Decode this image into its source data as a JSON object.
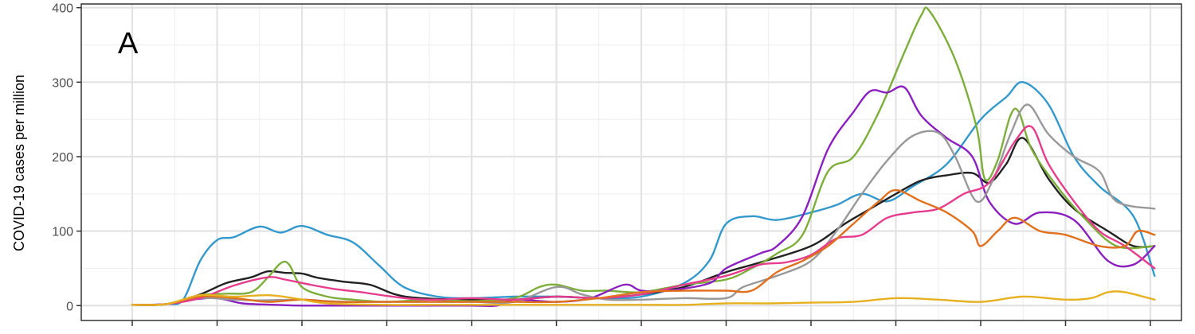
{
  "chart_data": {
    "type": "line",
    "panel_label": "A",
    "ylabel": "COVID-19 cases per million",
    "xlabel": "",
    "ylim": [
      -20,
      405
    ],
    "xlim": [
      -0.5,
      12.05
    ],
    "yticks": [
      0,
      100,
      200,
      300,
      400
    ],
    "ytick_labels": [
      "0",
      "100",
      "200",
      "300",
      "400"
    ],
    "xticks": [
      0,
      1,
      2,
      3,
      4,
      5,
      6,
      7,
      8,
      9,
      10,
      11,
      12
    ],
    "grid": true,
    "legend": "none",
    "series": [
      {
        "color": "#3399CC",
        "points": [
          [
            0,
            1
          ],
          [
            0.4,
            2
          ],
          [
            0.6,
            8
          ],
          [
            0.8,
            60
          ],
          [
            1,
            88
          ],
          [
            1.2,
            92
          ],
          [
            1.5,
            106
          ],
          [
            1.75,
            98
          ],
          [
            2,
            107
          ],
          [
            2.3,
            95
          ],
          [
            2.6,
            85
          ],
          [
            2.9,
            55
          ],
          [
            3.2,
            25
          ],
          [
            3.6,
            12
          ],
          [
            4,
            10
          ],
          [
            4.5,
            12
          ],
          [
            5,
            12
          ],
          [
            5.5,
            10
          ],
          [
            6,
            12
          ],
          [
            6.5,
            30
          ],
          [
            6.8,
            60
          ],
          [
            7,
            110
          ],
          [
            7.3,
            120
          ],
          [
            7.6,
            115
          ],
          [
            8,
            125
          ],
          [
            8.3,
            135
          ],
          [
            8.6,
            150
          ],
          [
            8.9,
            140
          ],
          [
            9.2,
            160
          ],
          [
            9.6,
            190
          ],
          [
            10,
            250
          ],
          [
            10.3,
            280
          ],
          [
            10.5,
            300
          ],
          [
            10.8,
            270
          ],
          [
            11.1,
            200
          ],
          [
            11.4,
            160
          ],
          [
            11.8,
            120
          ],
          [
            12.05,
            40
          ]
        ]
      },
      {
        "color": "#222222",
        "points": [
          [
            0,
            1
          ],
          [
            0.4,
            2
          ],
          [
            0.8,
            15
          ],
          [
            1.1,
            30
          ],
          [
            1.4,
            38
          ],
          [
            1.6,
            46
          ],
          [
            1.8,
            44
          ],
          [
            2,
            43
          ],
          [
            2.2,
            37
          ],
          [
            2.5,
            32
          ],
          [
            2.8,
            28
          ],
          [
            3.1,
            15
          ],
          [
            3.4,
            10
          ],
          [
            4,
            8
          ],
          [
            4.5,
            8
          ],
          [
            5,
            12
          ],
          [
            5.5,
            10
          ],
          [
            6,
            15
          ],
          [
            6.5,
            25
          ],
          [
            7,
            45
          ],
          [
            7.4,
            58
          ],
          [
            8,
            80
          ],
          [
            8.4,
            110
          ],
          [
            8.7,
            130
          ],
          [
            9,
            150
          ],
          [
            9.3,
            168
          ],
          [
            9.6,
            175
          ],
          [
            9.9,
            178
          ],
          [
            10.1,
            165
          ],
          [
            10.3,
            190
          ],
          [
            10.5,
            225
          ],
          [
            10.8,
            170
          ],
          [
            11.1,
            130
          ],
          [
            11.5,
            100
          ],
          [
            11.8,
            80
          ],
          [
            12.05,
            80
          ]
        ]
      },
      {
        "color": "#7CAE3A",
        "points": [
          [
            0,
            1
          ],
          [
            0.4,
            2
          ],
          [
            0.8,
            14
          ],
          [
            1.1,
            16
          ],
          [
            1.4,
            18
          ],
          [
            1.6,
            38
          ],
          [
            1.75,
            57
          ],
          [
            1.85,
            55
          ],
          [
            2,
            25
          ],
          [
            2.3,
            12
          ],
          [
            2.6,
            8
          ],
          [
            3,
            5
          ],
          [
            3.5,
            8
          ],
          [
            4,
            6
          ],
          [
            4.5,
            10
          ],
          [
            4.8,
            25
          ],
          [
            5,
            28
          ],
          [
            5.3,
            20
          ],
          [
            5.6,
            20
          ],
          [
            6,
            18
          ],
          [
            6.5,
            28
          ],
          [
            7,
            35
          ],
          [
            7.3,
            50
          ],
          [
            7.6,
            70
          ],
          [
            7.9,
            95
          ],
          [
            8.2,
            180
          ],
          [
            8.5,
            200
          ],
          [
            8.8,
            260
          ],
          [
            9.1,
            340
          ],
          [
            9.3,
            390
          ],
          [
            9.4,
            395
          ],
          [
            9.7,
            330
          ],
          [
            9.95,
            240
          ],
          [
            10.05,
            170
          ],
          [
            10.2,
            195
          ],
          [
            10.35,
            255
          ],
          [
            10.45,
            260
          ],
          [
            10.6,
            210
          ],
          [
            10.9,
            160
          ],
          [
            11.2,
            120
          ],
          [
            11.6,
            80
          ],
          [
            12.05,
            80
          ]
        ]
      },
      {
        "color": "#8B1FBF",
        "points": [
          [
            0,
            1
          ],
          [
            0.4,
            2
          ],
          [
            0.7,
            8
          ],
          [
            1,
            10
          ],
          [
            1.3,
            3
          ],
          [
            1.7,
            1
          ],
          [
            2,
            0
          ],
          [
            2.5,
            0
          ],
          [
            3,
            0
          ],
          [
            3.5,
            0
          ],
          [
            4,
            0
          ],
          [
            4.3,
            0
          ],
          [
            4.5,
            8
          ],
          [
            5,
            5
          ],
          [
            5.4,
            10
          ],
          [
            5.8,
            28
          ],
          [
            6,
            20
          ],
          [
            6.3,
            20
          ],
          [
            6.8,
            30
          ],
          [
            7,
            50
          ],
          [
            7.4,
            70
          ],
          [
            7.6,
            80
          ],
          [
            7.9,
            120
          ],
          [
            8.2,
            210
          ],
          [
            8.5,
            260
          ],
          [
            8.7,
            288
          ],
          [
            8.9,
            286
          ],
          [
            9.1,
            293
          ],
          [
            9.3,
            255
          ],
          [
            9.6,
            225
          ],
          [
            9.9,
            200
          ],
          [
            10.1,
            140
          ],
          [
            10.4,
            110
          ],
          [
            10.7,
            125
          ],
          [
            11.1,
            115
          ],
          [
            11.5,
            60
          ],
          [
            11.8,
            55
          ],
          [
            12.05,
            80
          ]
        ]
      },
      {
        "color": "#999999",
        "points": [
          [
            0,
            1
          ],
          [
            0.4,
            2
          ],
          [
            0.8,
            10
          ],
          [
            1.2,
            8
          ],
          [
            1.5,
            7
          ],
          [
            2,
            8
          ],
          [
            2.3,
            6
          ],
          [
            2.6,
            5
          ],
          [
            3,
            5
          ],
          [
            3.5,
            5
          ],
          [
            4,
            5
          ],
          [
            4.5,
            5
          ],
          [
            5,
            25
          ],
          [
            5.3,
            15
          ],
          [
            5.6,
            8
          ],
          [
            6,
            8
          ],
          [
            6.5,
            10
          ],
          [
            7,
            10
          ],
          [
            7.2,
            25
          ],
          [
            7.6,
            40
          ],
          [
            8,
            60
          ],
          [
            8.3,
            100
          ],
          [
            8.6,
            150
          ],
          [
            8.9,
            195
          ],
          [
            9.2,
            228
          ],
          [
            9.5,
            232
          ],
          [
            9.7,
            200
          ],
          [
            9.95,
            140
          ],
          [
            10.15,
            170
          ],
          [
            10.35,
            230
          ],
          [
            10.55,
            270
          ],
          [
            10.8,
            230
          ],
          [
            11.1,
            200
          ],
          [
            11.4,
            180
          ],
          [
            11.6,
            140
          ],
          [
            12.05,
            130
          ]
        ]
      },
      {
        "color": "#E53C8E",
        "points": [
          [
            0,
            1
          ],
          [
            0.4,
            2
          ],
          [
            0.8,
            10
          ],
          [
            1.2,
            27
          ],
          [
            1.6,
            38
          ],
          [
            1.8,
            35
          ],
          [
            2.1,
            28
          ],
          [
            2.4,
            22
          ],
          [
            2.7,
            18
          ],
          [
            3,
            13
          ],
          [
            3.3,
            9
          ],
          [
            3.6,
            8
          ],
          [
            4,
            10
          ],
          [
            4.5,
            8
          ],
          [
            5,
            12
          ],
          [
            5.5,
            10
          ],
          [
            6,
            15
          ],
          [
            6.5,
            28
          ],
          [
            7,
            40
          ],
          [
            7.4,
            55
          ],
          [
            7.7,
            58
          ],
          [
            8,
            68
          ],
          [
            8.3,
            90
          ],
          [
            8.6,
            95
          ],
          [
            8.9,
            118
          ],
          [
            9.2,
            125
          ],
          [
            9.5,
            130
          ],
          [
            9.8,
            150
          ],
          [
            10.1,
            165
          ],
          [
            10.4,
            220
          ],
          [
            10.6,
            240
          ],
          [
            10.8,
            190
          ],
          [
            11.1,
            140
          ],
          [
            11.4,
            100
          ],
          [
            11.7,
            80
          ],
          [
            12.05,
            50
          ]
        ]
      },
      {
        "color": "#E0701E",
        "points": [
          [
            0,
            1
          ],
          [
            0.4,
            2
          ],
          [
            0.8,
            12
          ],
          [
            1.2,
            10
          ],
          [
            1.6,
            5
          ],
          [
            2,
            8
          ],
          [
            2.4,
            5
          ],
          [
            3,
            5
          ],
          [
            3.5,
            5
          ],
          [
            4,
            5
          ],
          [
            4.5,
            5
          ],
          [
            5,
            5
          ],
          [
            5.5,
            10
          ],
          [
            6,
            18
          ],
          [
            6.5,
            20
          ],
          [
            7,
            20
          ],
          [
            7.3,
            20
          ],
          [
            7.6,
            45
          ],
          [
            7.9,
            60
          ],
          [
            8.2,
            80
          ],
          [
            8.5,
            110
          ],
          [
            8.8,
            140
          ],
          [
            9,
            155
          ],
          [
            9.3,
            140
          ],
          [
            9.6,
            125
          ],
          [
            9.9,
            100
          ],
          [
            10,
            80
          ],
          [
            10.2,
            100
          ],
          [
            10.4,
            118
          ],
          [
            10.7,
            100
          ],
          [
            11,
            95
          ],
          [
            11.4,
            80
          ],
          [
            11.7,
            80
          ],
          [
            11.85,
            100
          ],
          [
            12.05,
            95
          ]
        ]
      },
      {
        "color": "#E6B020",
        "points": [
          [
            0,
            1
          ],
          [
            0.4,
            2
          ],
          [
            0.8,
            14
          ],
          [
            1.2,
            12
          ],
          [
            1.6,
            14
          ],
          [
            1.9,
            10
          ],
          [
            2.3,
            3
          ],
          [
            3,
            1
          ],
          [
            3.5,
            1
          ],
          [
            4,
            1
          ],
          [
            4.5,
            1
          ],
          [
            5,
            1
          ],
          [
            5.5,
            1
          ],
          [
            6,
            1
          ],
          [
            6.5,
            1
          ],
          [
            7,
            3
          ],
          [
            7.5,
            3
          ],
          [
            8,
            4
          ],
          [
            8.5,
            5
          ],
          [
            9,
            10
          ],
          [
            9.5,
            8
          ],
          [
            10,
            5
          ],
          [
            10.5,
            12
          ],
          [
            11,
            8
          ],
          [
            11.3,
            10
          ],
          [
            11.5,
            18
          ],
          [
            11.7,
            18
          ],
          [
            12.05,
            8
          ]
        ]
      }
    ]
  }
}
